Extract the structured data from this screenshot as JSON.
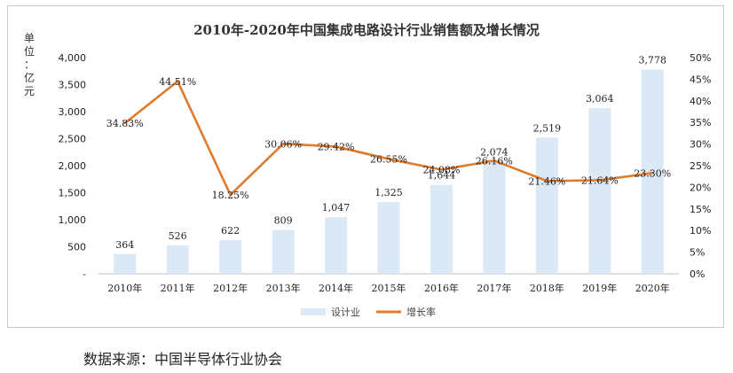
{
  "source_note": "数据来源：中国半导体行业协会",
  "unit_label": [
    "单",
    "位",
    "：",
    "亿",
    "元"
  ],
  "legend": {
    "bar": "设计业",
    "line": "增长率"
  },
  "colors": {
    "bar": "#dbe8f5",
    "line": "#e07b2e",
    "axis": "#bfbfbf"
  },
  "chart_data": {
    "type": "bar+line",
    "title": "2010年-2020年中国集成电路设计行业销售额及增长情况",
    "categories": [
      "2010年",
      "2011年",
      "2012年",
      "2013年",
      "2014年",
      "2015年",
      "2016年",
      "2017年",
      "2018年",
      "2019年",
      "2020年"
    ],
    "series": [
      {
        "name": "设计业",
        "type": "bar",
        "axis": "left",
        "values": [
          364,
          526,
          622,
          809,
          1047,
          1325,
          1644,
          2074,
          2519,
          3064,
          3778
        ],
        "labels": [
          "364",
          "526",
          "622",
          "809",
          "1,047",
          "1,325",
          "1,644",
          "2,074",
          "2,519",
          "3,064",
          "3,778"
        ]
      },
      {
        "name": "增长率",
        "type": "line",
        "axis": "right",
        "values": [
          34.83,
          44.51,
          18.25,
          30.06,
          29.42,
          26.55,
          24.08,
          26.16,
          21.46,
          21.64,
          23.3
        ],
        "labels": [
          "34.83%",
          "44.51%",
          "18.25%",
          "30.06%",
          "29.42%",
          "26.55%",
          "24.08%",
          "26.16%",
          "21.46%",
          "21.64%",
          "23.30%"
        ]
      }
    ],
    "y_left": {
      "lim": [
        0,
        4000
      ],
      "ticks": [
        "-",
        "500",
        "1,000",
        "1,500",
        "2,000",
        "2,500",
        "3,000",
        "3,500",
        "4,000"
      ]
    },
    "y_right": {
      "lim": [
        0,
        50
      ],
      "ticks": [
        "0%",
        "5%",
        "10%",
        "15%",
        "20%",
        "25%",
        "30%",
        "35%",
        "40%",
        "45%",
        "50%"
      ]
    },
    "grid": false,
    "legend_position": "bottom"
  }
}
